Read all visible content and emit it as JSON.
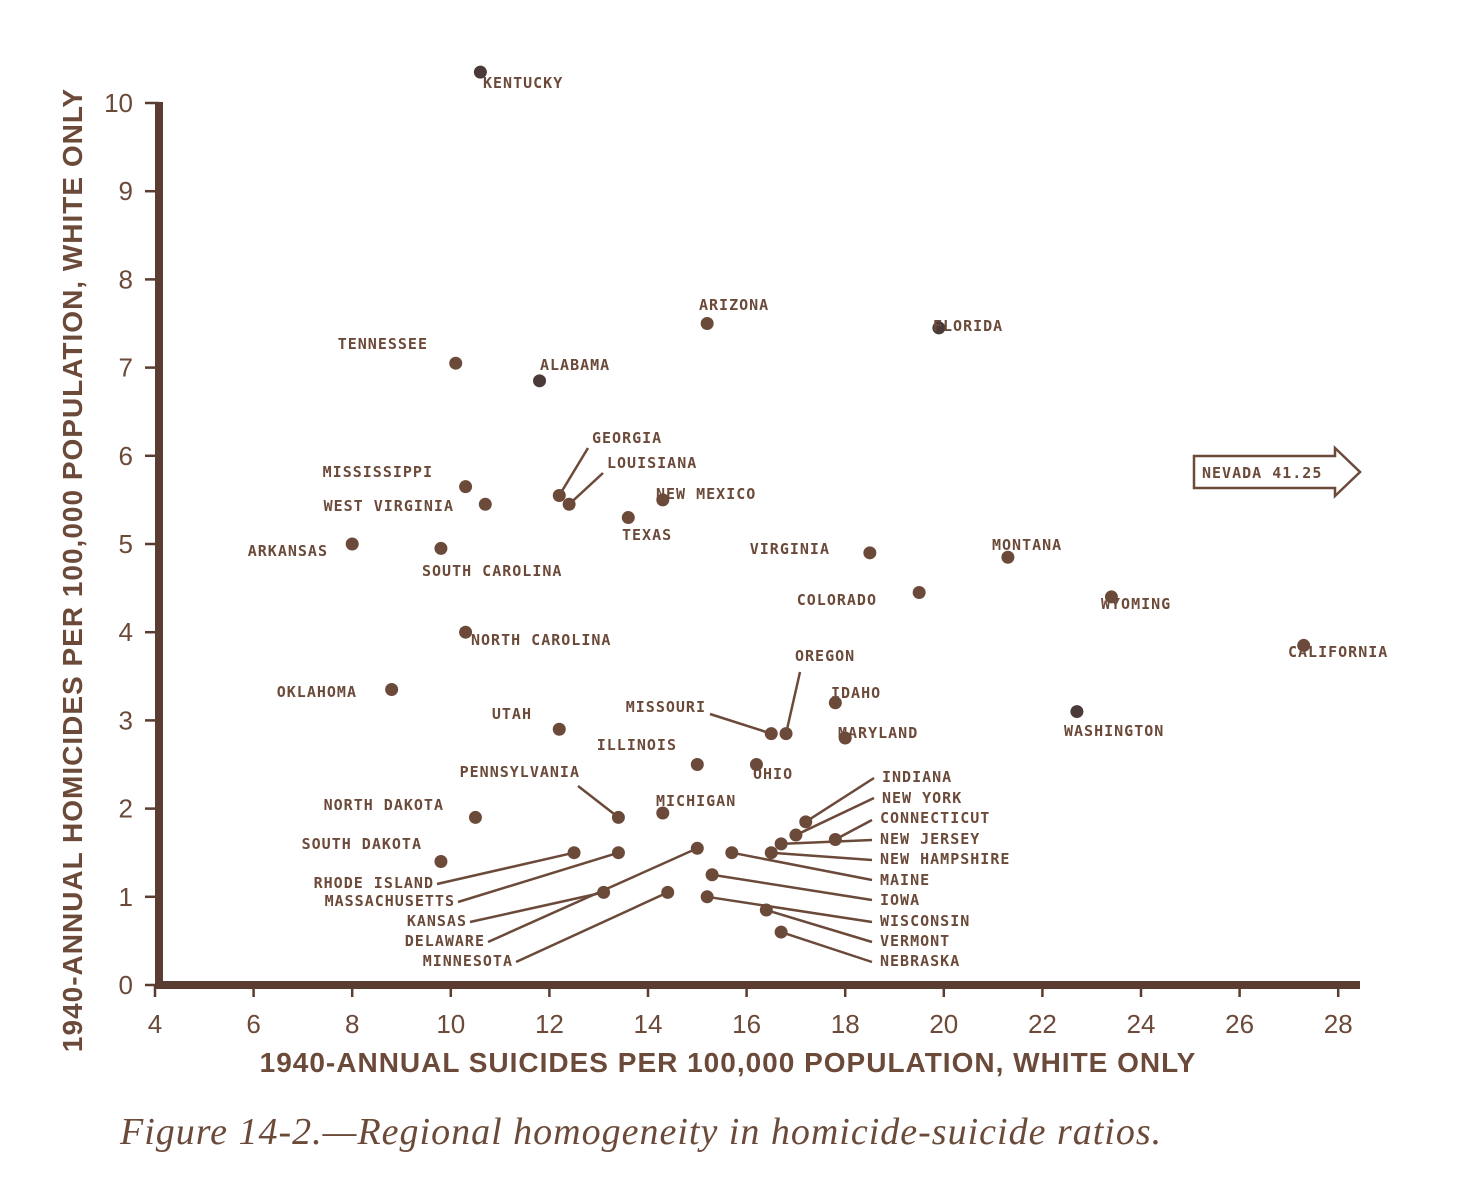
{
  "caption": "Figure 14-2.—Regional homogeneity in homicide-suicide ratios.",
  "colors": {
    "ink": "#6b4a3a",
    "axis": "#5a3c30",
    "dot": "#6b4a3a",
    "dot_dark": "#4a3a3a"
  },
  "chart_data": {
    "type": "scatter",
    "xlabel": "1940-ANNUAL SUICIDES PER 100,000 POPULATION, WHITE ONLY",
    "ylabel": "1940-ANNUAL HOMICIDES PER 100,000 POPULATION, WHITE ONLY",
    "xlim": [
      4,
      29
    ],
    "ylim": [
      0,
      10.4
    ],
    "xticks": [
      4,
      6,
      8,
      10,
      12,
      14,
      16,
      18,
      20,
      22,
      24,
      26,
      28
    ],
    "yticks": [
      0,
      1,
      2,
      3,
      4,
      5,
      6,
      7,
      8,
      9,
      10
    ],
    "grid": false,
    "points": [
      {
        "label": "KENTUCKY",
        "x": 10.6,
        "y": 10.35
      },
      {
        "label": "ARIZONA",
        "x": 15.2,
        "y": 7.5
      },
      {
        "label": "FLORIDA",
        "x": 19.9,
        "y": 7.45
      },
      {
        "label": "TENNESSEE",
        "x": 10.1,
        "y": 7.05
      },
      {
        "label": "ALABAMA",
        "x": 11.8,
        "y": 6.85
      },
      {
        "label": "GEORGIA",
        "x": 12.2,
        "y": 5.55
      },
      {
        "label": "LOUISIANA",
        "x": 12.4,
        "y": 5.45
      },
      {
        "label": "MISSISSIPPI",
        "x": 10.3,
        "y": 5.65
      },
      {
        "label": "WEST VIRGINIA",
        "x": 10.7,
        "y": 5.45
      },
      {
        "label": "NEW MEXICO",
        "x": 14.3,
        "y": 5.5
      },
      {
        "label": "TEXAS",
        "x": 13.6,
        "y": 5.3
      },
      {
        "label": "ARKANSAS",
        "x": 8.0,
        "y": 5.0
      },
      {
        "label": "SOUTH CAROLINA",
        "x": 9.8,
        "y": 4.95
      },
      {
        "label": "VIRGINIA",
        "x": 18.5,
        "y": 4.9
      },
      {
        "label": "MONTANA",
        "x": 21.3,
        "y": 4.85
      },
      {
        "label": "COLORADO",
        "x": 19.5,
        "y": 4.45
      },
      {
        "label": "WYOMING",
        "x": 23.4,
        "y": 4.4
      },
      {
        "label": "NORTH CAROLINA",
        "x": 10.3,
        "y": 4.0
      },
      {
        "label": "CALIFORNIA",
        "x": 27.3,
        "y": 3.85
      },
      {
        "label": "OKLAHOMA",
        "x": 8.8,
        "y": 3.35
      },
      {
        "label": "IDAHO",
        "x": 17.8,
        "y": 3.2
      },
      {
        "label": "WASHINGTON",
        "x": 22.7,
        "y": 3.1
      },
      {
        "label": "OREGON",
        "x": 16.8,
        "y": 2.85
      },
      {
        "label": "MISSOURI",
        "x": 16.5,
        "y": 2.85
      },
      {
        "label": "UTAH",
        "x": 12.2,
        "y": 2.9
      },
      {
        "label": "MARYLAND",
        "x": 18.0,
        "y": 2.8
      },
      {
        "label": "ILLINOIS",
        "x": 15.0,
        "y": 2.5
      },
      {
        "label": "OHIO",
        "x": 16.2,
        "y": 2.5
      },
      {
        "label": "PENNSYLVANIA",
        "x": 13.4,
        "y": 1.9
      },
      {
        "label": "MICHIGAN",
        "x": 14.3,
        "y": 1.95
      },
      {
        "label": "NORTH DAKOTA",
        "x": 10.5,
        "y": 1.9
      },
      {
        "label": "INDIANA",
        "x": 17.2,
        "y": 1.85
      },
      {
        "label": "NEW YORK",
        "x": 17.0,
        "y": 1.7
      },
      {
        "label": "CONNECTICUT",
        "x": 17.8,
        "y": 1.65
      },
      {
        "label": "NEW JERSEY",
        "x": 16.7,
        "y": 1.6
      },
      {
        "label": "NEW HAMPSHIRE",
        "x": 16.5,
        "y": 1.5
      },
      {
        "label": "SOUTH DAKOTA",
        "x": 9.8,
        "y": 1.4
      },
      {
        "label": "RHODE ISLAND",
        "x": 12.5,
        "y": 1.5
      },
      {
        "label": "MASSACHUSETTS",
        "x": 13.4,
        "y": 1.5
      },
      {
        "label": "DELAWARE",
        "x": 15.0,
        "y": 1.55
      },
      {
        "label": "MAINE",
        "x": 15.7,
        "y": 1.5
      },
      {
        "label": "IOWA",
        "x": 15.3,
        "y": 1.25
      },
      {
        "label": "KANSAS",
        "x": 13.1,
        "y": 1.05
      },
      {
        "label": "MINNESOTA",
        "x": 14.4,
        "y": 1.05
      },
      {
        "label": "WISCONSIN",
        "x": 15.2,
        "y": 1.0
      },
      {
        "label": "VERMONT",
        "x": 16.4,
        "y": 0.85
      },
      {
        "label": "NEBRASKA",
        "x": 16.7,
        "y": 0.6
      }
    ],
    "annotations": [
      {
        "text": "NEVADA 41.25",
        "note": "off-scale"
      }
    ]
  }
}
